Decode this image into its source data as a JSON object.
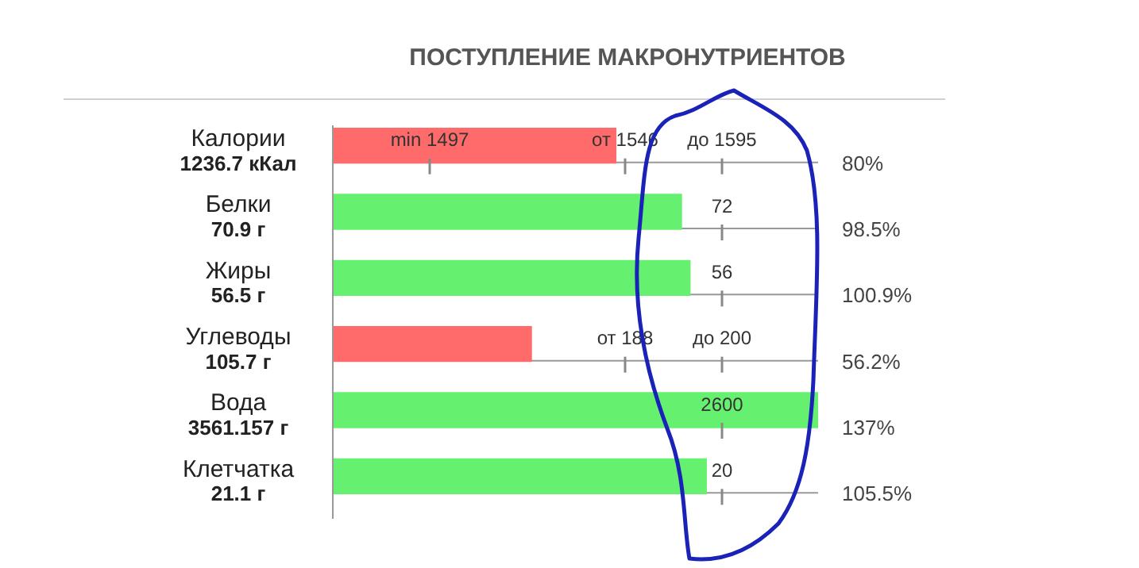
{
  "chart_data": {
    "type": "bar",
    "orientation": "horizontal",
    "title": "ПОСТУПЛЕНИЕ МАКРОНУТРИЕНТОВ",
    "categories": [
      "Калории\n1236.7 кКал",
      "Белки\n70.9 г",
      "Жиры\n56.5 г",
      "Углеводы\n105.7 г",
      "Вода\n3561.157 г",
      "Клетчатка\n21.1 г"
    ],
    "values": [
      80,
      98.5,
      100.9,
      56.2,
      137,
      105.5
    ],
    "colors": [
      "#ff6b6b",
      "#66f06f",
      "#66f06f",
      "#ff6b6b",
      "#66f06f",
      "#66f06f"
    ],
    "value_labels": [
      "80%",
      "98.5%",
      "100.9%",
      "56.2%",
      "137%",
      "105.5%"
    ],
    "annotations": [
      "min 1497",
      "от 1546",
      "до 1595",
      "72",
      "56",
      "от 188",
      "до 200",
      "2600",
      "20"
    ],
    "legend": false
  }
}
